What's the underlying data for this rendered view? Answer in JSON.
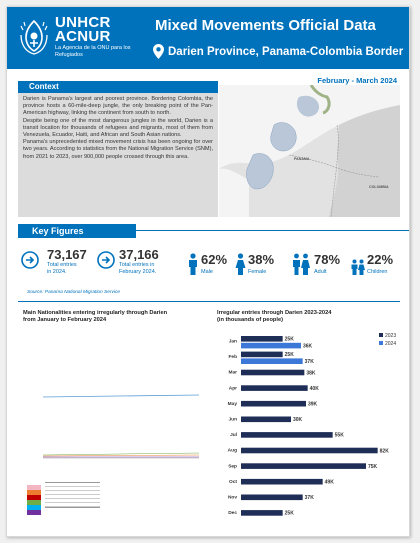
{
  "header": {
    "org_name_line1": "UNHCR",
    "org_name_line2": "ACNUR",
    "org_sub": "La Agencia de la ONU para los Refugiados",
    "title": "Mixed Movements Official Data",
    "location": "Darien Province, Panama-Colombia Border",
    "period": "February - March 2024",
    "brand_color": "#0072bc"
  },
  "context": {
    "heading": "Context",
    "paragraphs": [
      "Darien is Panama's largest and poorest province. Bordering Colombia, the province hosts a 60-mile-deep jungle, the only breaking point of the Pan-American highway, linking the continent from south to north.",
      "Despite being one of the most dangerous jungles in the world, Darien is a transit location for thousands of refugees and migrants, most of them from Venezuela, Ecuador, Haiti, and African and South Asian nations.",
      "Panama's unprecedented mixed movement crisis has been ongoing for over two years. According to statistics from the National Migration Service (SNM), from 2021 to 2023, over 900,000 people crossed through this area."
    ],
    "map_labels": [
      "PANAMA",
      "COLOMBIA"
    ]
  },
  "key_figures": {
    "heading": "Key Figures",
    "totals": [
      {
        "value": "73,167",
        "label_line1": "Total entries",
        "label_line2": "in 2024.",
        "icon": "arrow-right-circle-icon"
      },
      {
        "value": "37,166",
        "label_line1": "Total entries in",
        "label_line2": "February 2024.",
        "icon": "arrow-right-circle-icon"
      }
    ],
    "demographics": [
      {
        "value": "62%",
        "label": "Male",
        "icon": "male-icon"
      },
      {
        "value": "38%",
        "label": "Female",
        "icon": "female-icon"
      },
      {
        "value": "78%",
        "label": "Adult",
        "icon": "adults-icon"
      },
      {
        "value": "22%",
        "label": "Children",
        "icon": "children-icon"
      }
    ],
    "source": "Source: Panama National Migration Service"
  },
  "left_chart": {
    "title_line1": "Main Nationalities entering irregularly through Darien",
    "title_line2": "from January to February 2024"
  },
  "chart_data": {
    "type": "bar",
    "title": "Irregular entries through Darien 2023-2024 (in thousands of people)",
    "title_line1": "Irregular entries through Darien 2023-2024",
    "title_line2": "(in thousands of people)",
    "categories": [
      "Jan",
      "Feb",
      "Mar",
      "Apr",
      "May",
      "Jun",
      "Jul",
      "Aug",
      "Sep",
      "Oct",
      "Nov",
      "Dec"
    ],
    "series": [
      {
        "name": "2023",
        "color": "#1f2e57",
        "values": [
          25,
          25,
          38,
          40,
          39,
          30,
          55,
          82,
          75,
          49,
          37,
          25
        ],
        "labels": [
          "25K",
          "25K",
          "38K",
          "40K",
          "39K",
          "30K",
          "55K",
          "82K",
          "75K",
          "49K",
          "37K",
          "25K"
        ]
      },
      {
        "name": "2024",
        "color": "#3c78d8",
        "values": [
          36,
          37,
          null,
          null,
          null,
          null,
          null,
          null,
          null,
          null,
          null,
          null
        ],
        "labels": [
          "36K",
          "37K",
          "",
          "",
          "",
          "",
          "",
          "",
          "",
          "",
          "",
          ""
        ]
      }
    ],
    "xlim": [
      0,
      90
    ],
    "orientation": "horizontal",
    "legend": "top-right"
  }
}
